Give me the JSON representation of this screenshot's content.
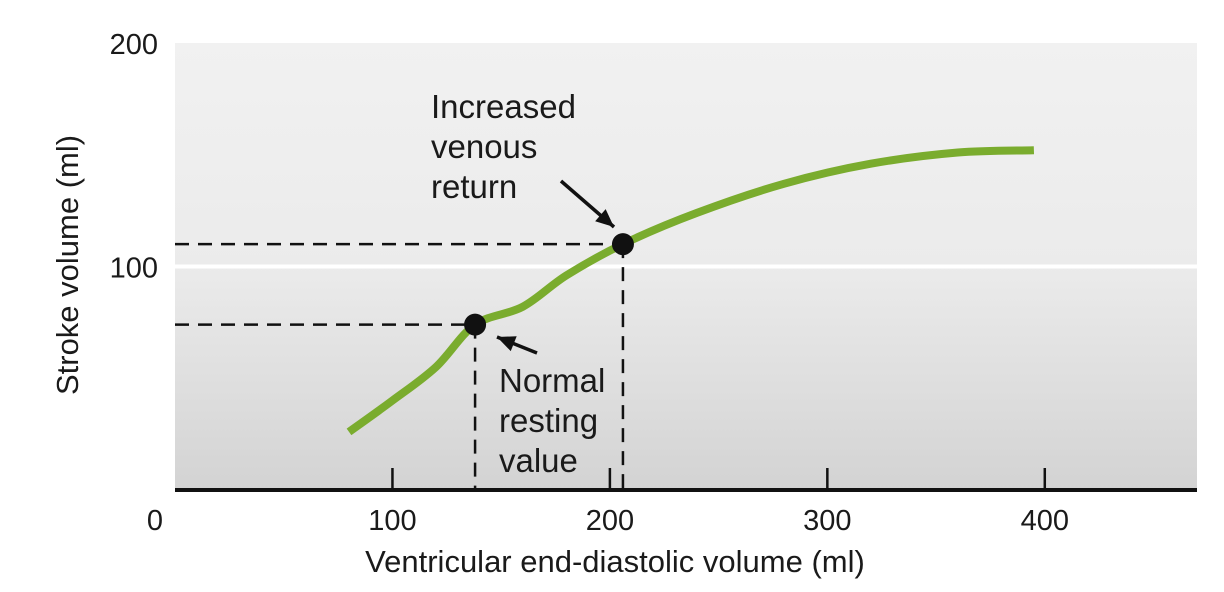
{
  "chart_data": {
    "type": "line",
    "title": "",
    "xlabel": "Ventricular end-diastolic volume (ml)",
    "ylabel": "Stroke volume (ml)",
    "xlim": [
      0,
      470
    ],
    "ylim": [
      0,
      200
    ],
    "x_ticks": [
      0,
      100,
      200,
      300,
      400
    ],
    "y_ticks": [
      100,
      200
    ],
    "grid": false,
    "series": [
      {
        "x": [
          80,
          100,
          120,
          138,
          160,
          180,
          206,
          240,
          280,
          320,
          360,
          395
        ],
        "y": [
          26,
          40,
          55,
          74,
          82,
          96,
          110,
          124,
          137,
          146,
          151,
          152
        ],
        "color": "#7aac2e"
      }
    ],
    "points": [
      {
        "x": 138,
        "y": 74,
        "label_lines": [
          "Normal",
          "resting",
          "value"
        ]
      },
      {
        "x": 206,
        "y": 110,
        "label_lines": [
          "Increased",
          "venous",
          "return"
        ]
      }
    ],
    "colors": {
      "curve": "#7aac2e",
      "background_top": "#f1f1f1",
      "background_bottom": "#d3d3d3",
      "midline": "#ffffff",
      "axis": "#111111"
    }
  }
}
